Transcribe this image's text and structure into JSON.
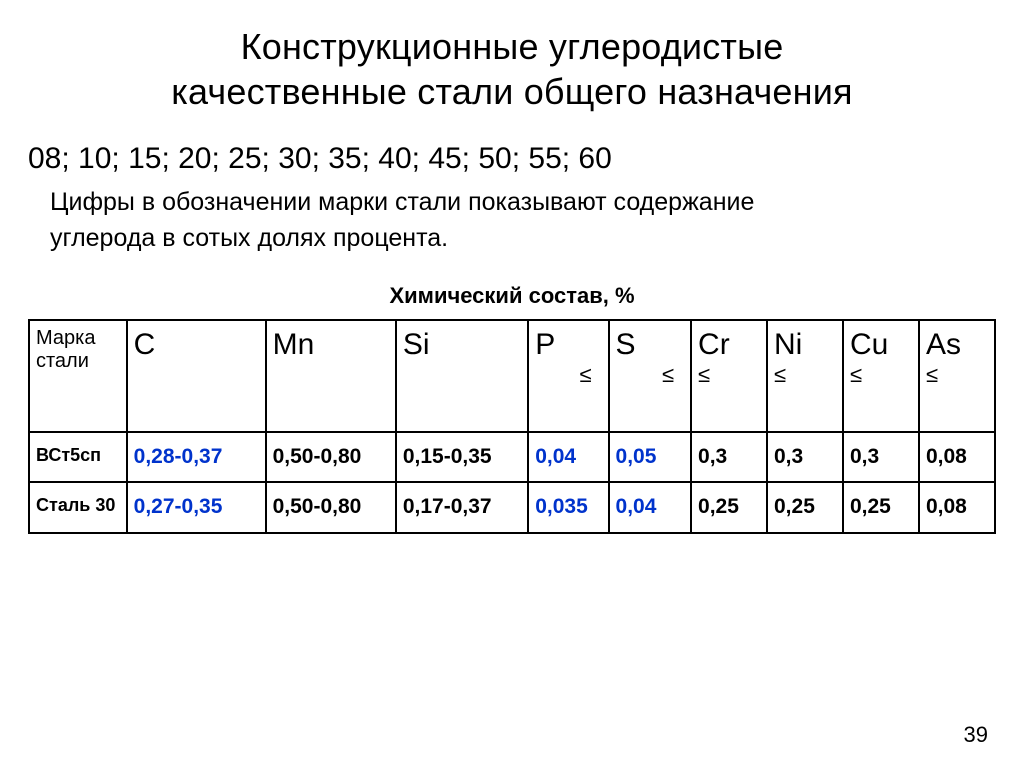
{
  "title_line1": "Конструкционные углеродистые",
  "title_line2": "качественные стали общего назначения",
  "grades_line": "08; 10; 15; 20; 25; 30; 35; 40; 45; 50; 55; 60",
  "desc_line1": "Цифры в обозначении марки стали показывают содержание",
  "desc_line2": "углерода в сотых долях процента.",
  "table_title": "Химический состав, %",
  "page_number": "39",
  "leq_symbol": "≤",
  "table": {
    "header": {
      "label": "Марка стали",
      "elements": [
        "C",
        "Mn",
        "Si",
        "P",
        "S",
        "Cr",
        "Ni",
        "Cu",
        "As"
      ],
      "has_leq": [
        false,
        false,
        false,
        true,
        true,
        true,
        true,
        true,
        true
      ]
    },
    "rows": [
      {
        "label": "ВСт5сп",
        "cells": [
          {
            "v": "0,28-0,37",
            "blue": true
          },
          {
            "v": "0,50-0,80",
            "blue": false
          },
          {
            "v": "0,15-0,35",
            "blue": false
          },
          {
            "v": "0,04",
            "blue": true
          },
          {
            "v": "0,05",
            "blue": true
          },
          {
            "v": "0,3",
            "blue": false
          },
          {
            "v": "0,3",
            "blue": false
          },
          {
            "v": "0,3",
            "blue": false
          },
          {
            "v": "0,08",
            "blue": false
          }
        ]
      },
      {
        "label": "Сталь 30",
        "cells": [
          {
            "v": "0,27-0,35",
            "blue": true
          },
          {
            "v": "0,50-0,80",
            "blue": false
          },
          {
            "v": "0,17-0,37",
            "blue": false
          },
          {
            "v": "0,035",
            "blue": true
          },
          {
            "v": "0,04",
            "blue": true
          },
          {
            "v": "0,25",
            "blue": false
          },
          {
            "v": "0,25",
            "blue": false
          },
          {
            "v": "0,25",
            "blue": false
          },
          {
            "v": "0,08",
            "blue": false
          }
        ]
      }
    ]
  },
  "colors": {
    "text": "#000000",
    "highlight": "#0033cc",
    "background": "#ffffff",
    "border": "#000000"
  }
}
